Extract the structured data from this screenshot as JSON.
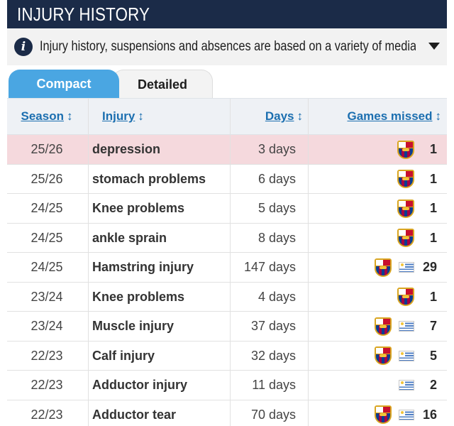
{
  "header": {
    "title": "INJURY HISTORY"
  },
  "info": {
    "icon": "info-icon",
    "text": "Injury history, suspensions and absences are based on a variety of media...",
    "toggle_icon": "caret-down-icon"
  },
  "tabs": [
    {
      "label": "Compact",
      "active": true
    },
    {
      "label": "Detailed",
      "active": false
    }
  ],
  "table": {
    "columns": [
      {
        "label": "Season",
        "sort_icon": "↕"
      },
      {
        "label": "Injury",
        "sort_icon": "↕"
      },
      {
        "label": "Days",
        "sort_icon": "↕"
      },
      {
        "label": "Games missed",
        "sort_icon": "↕"
      }
    ],
    "rows": [
      {
        "season": "25/26",
        "injury": "depression",
        "days": "3 days",
        "clubs": [
          "barcelona-crest-icon"
        ],
        "games": "1",
        "highlighted": true
      },
      {
        "season": "25/26",
        "injury": "stomach problems",
        "days": "6 days",
        "clubs": [
          "barcelona-crest-icon"
        ],
        "games": "1",
        "highlighted": false
      },
      {
        "season": "24/25",
        "injury": "Knee problems",
        "days": "5 days",
        "clubs": [
          "barcelona-crest-icon"
        ],
        "games": "1",
        "highlighted": false
      },
      {
        "season": "24/25",
        "injury": "ankle sprain",
        "days": "8 days",
        "clubs": [
          "barcelona-crest-icon"
        ],
        "games": "1",
        "highlighted": false
      },
      {
        "season": "24/25",
        "injury": "Hamstring injury",
        "days": "147 days",
        "clubs": [
          "barcelona-crest-icon",
          "uruguay-flag-icon"
        ],
        "games": "29",
        "highlighted": false
      },
      {
        "season": "23/24",
        "injury": "Knee problems",
        "days": "4 days",
        "clubs": [
          "barcelona-crest-icon"
        ],
        "games": "1",
        "highlighted": false
      },
      {
        "season": "23/24",
        "injury": "Muscle injury",
        "days": "37 days",
        "clubs": [
          "barcelona-crest-icon",
          "uruguay-flag-icon"
        ],
        "games": "7",
        "highlighted": false
      },
      {
        "season": "22/23",
        "injury": "Calf injury",
        "days": "32 days",
        "clubs": [
          "barcelona-crest-icon",
          "uruguay-flag-icon"
        ],
        "games": "5",
        "highlighted": false
      },
      {
        "season": "22/23",
        "injury": "Adductor injury",
        "days": "11 days",
        "clubs": [
          "uruguay-flag-icon"
        ],
        "games": "2",
        "highlighted": false
      },
      {
        "season": "22/23",
        "injury": "Adductor tear",
        "days": "70 days",
        "clubs": [
          "barcelona-crest-icon",
          "uruguay-flag-icon"
        ],
        "games": "16",
        "highlighted": false
      }
    ]
  },
  "colors": {
    "header_bg": "#1b2b48",
    "tab_active": "#4aa6e2",
    "link": "#1c6fb0",
    "highlight_row": "#f5d9dd"
  }
}
